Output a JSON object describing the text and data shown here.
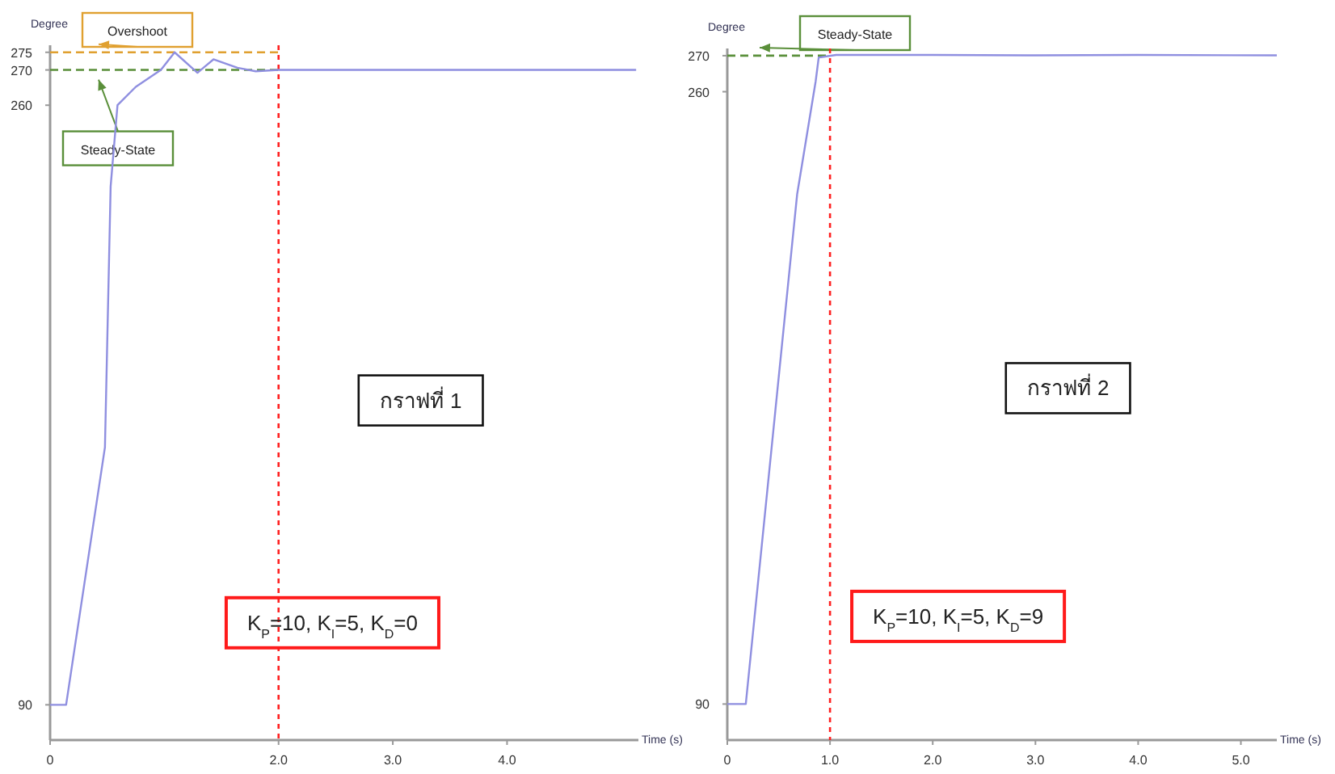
{
  "chart_data": [
    {
      "type": "line",
      "ylabel": "Degree",
      "xlabel": "Time (s)",
      "xlim": [
        0,
        5.15
      ],
      "xticks": [
        0,
        {
          "value": 2,
          "label": "2.0"
        },
        {
          "value": 3,
          "label": "3.0"
        },
        {
          "value": 4,
          "label": "4.0"
        }
      ],
      "ylim": [
        80,
        277
      ],
      "yticks": [
        90,
        260,
        270,
        275
      ],
      "grid": false,
      "series": [
        {
          "color": "#8f8fe0",
          "x": [
            0,
            0.14,
            0.48,
            0.53,
            0.59,
            0.75,
            0.97,
            1.09,
            1.29,
            1.43,
            1.64,
            1.8,
            2.0,
            3.0,
            4.0,
            5.13
          ],
          "values": [
            90,
            90,
            163,
            237,
            260,
            265.2,
            270,
            275,
            269.2,
            273,
            270.6,
            269.6,
            270,
            270,
            270,
            270
          ]
        }
      ],
      "ref_lines": [
        {
          "axis": "y",
          "value": 275,
          "label": "Overshoot",
          "color": "#e0a030",
          "line_style": "dashed"
        },
        {
          "axis": "y",
          "value": 270,
          "label": "Steady-State",
          "color": "#5a8f3a",
          "line_style": "dashed"
        },
        {
          "axis": "x",
          "value": 2,
          "color": "#ff2020",
          "line_style": "dotted"
        }
      ],
      "annotations": [
        "กราฟที่ 1",
        "K$_{P}$=10, K$_{I}$=5, K$_{D}$=0"
      ]
    },
    {
      "type": "line",
      "ylabel": "Degree",
      "xlabel": "Time (s)",
      "xlim": [
        0,
        5.35
      ],
      "xticks": [
        0,
        {
          "value": 1,
          "label": "1.0"
        },
        {
          "value": 2,
          "label": "2.0"
        },
        {
          "value": 3,
          "label": "3.0"
        },
        {
          "value": 4,
          "label": "4.0"
        },
        {
          "value": 5,
          "label": "5.0"
        }
      ],
      "ylim": [
        80,
        272
      ],
      "yticks": [
        90,
        260,
        270
      ],
      "grid": false,
      "series": [
        {
          "color": "#8f8fe0",
          "x": [
            0,
            0.18,
            0.68,
            0.86,
            0.89,
            1.06,
            2.0,
            3.0,
            4.0,
            5.35
          ],
          "values": [
            90,
            90,
            231.5,
            262.8,
            269.5,
            270.2,
            270.2,
            270.1,
            270.2,
            270.1
          ]
        }
      ],
      "ref_lines": [
        {
          "axis": "y",
          "value": 270,
          "label": "Steady-State",
          "color": "#5a8f3a",
          "line_style": "dashed"
        },
        {
          "axis": "x",
          "value": 1,
          "color": "#ff2020",
          "line_style": "dotted"
        }
      ],
      "annotations": [
        "กราฟที่ 2",
        "K$_{P}$=10, K$_{I}$=5, K$_{D}$=9"
      ]
    }
  ]
}
